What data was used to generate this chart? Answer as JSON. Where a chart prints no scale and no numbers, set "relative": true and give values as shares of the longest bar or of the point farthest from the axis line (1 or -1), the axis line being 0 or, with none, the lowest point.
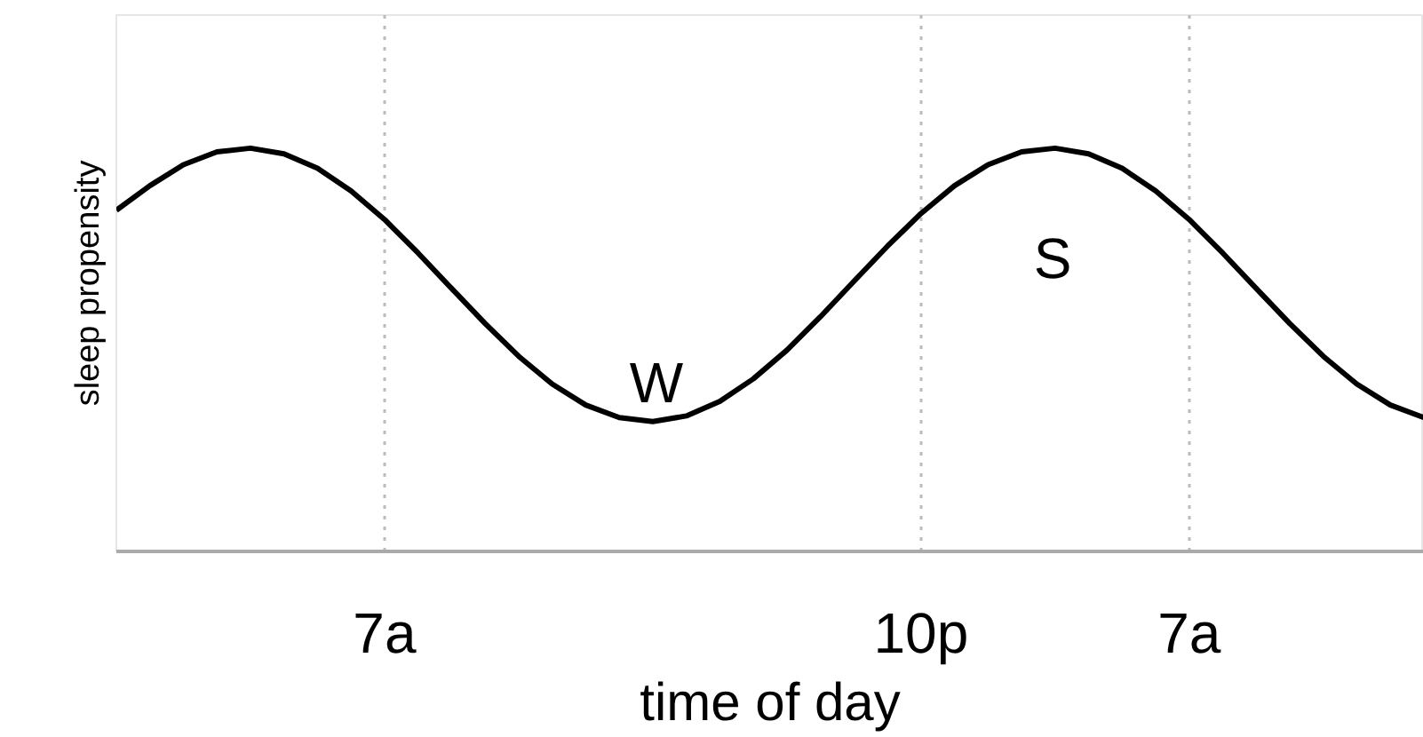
{
  "chart_data": {
    "type": "line",
    "relative": true,
    "xlabel": "time of day",
    "ylabel": "sleep propensity",
    "categories": [
      null,
      null,
      null,
      null,
      null,
      null,
      null,
      null,
      "7a",
      null,
      null,
      null,
      null,
      null,
      null,
      null,
      null,
      null,
      null,
      null,
      null,
      null,
      null,
      null,
      "10p",
      null,
      null,
      null,
      null,
      null,
      null,
      null,
      "7a",
      null,
      null,
      null,
      null,
      null,
      null,
      null
    ],
    "series": [
      {
        "color": "#000000",
        "values": [
          0.846,
          0.907,
          0.959,
          0.991,
          1.0,
          0.986,
          0.95,
          0.894,
          0.823,
          0.74,
          0.652,
          0.565,
          0.484,
          0.415,
          0.363,
          0.332,
          0.322,
          0.336,
          0.372,
          0.428,
          0.499,
          0.582,
          0.67,
          0.757,
          0.838,
          0.907,
          0.959,
          0.991,
          1.0,
          0.986,
          0.95,
          0.894,
          0.823,
          0.74,
          0.652,
          0.565,
          0.484,
          0.415,
          0.363,
          0.332
        ]
      }
    ],
    "annotations": [
      "W",
      "S"
    ],
    "line_style": "solid",
    "grid": "x"
  }
}
